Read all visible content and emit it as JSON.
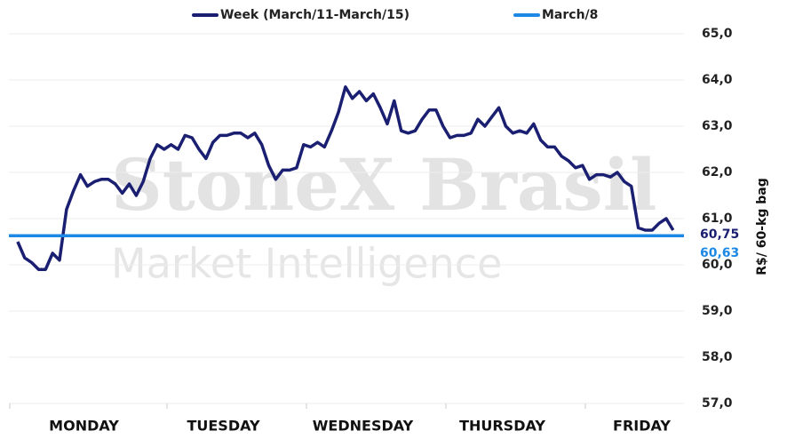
{
  "chart_data": {
    "type": "line",
    "watermark": [
      "StoneX Brasil",
      "Market Intelligence"
    ],
    "y_axis_label": "R$/ 60-kg bag",
    "categories": [
      "MONDAY",
      "TUESDAY",
      "WEDNESDAY",
      "THURSDAY",
      "FRIDAY"
    ],
    "series": [
      {
        "name": "Week (March/11-March/15)",
        "color": "#1a1f71",
        "value_label": "60,75",
        "values": [
          [
            60.5,
            60.15,
            60.05,
            59.9,
            59.9,
            60.25,
            60.1,
            61.2,
            61.6,
            61.95,
            61.7,
            61.8,
            61.85,
            61.85,
            61.75,
            61.55,
            61.75,
            61.5,
            61.8,
            62.3
          ],
          [
            62.6,
            62.5,
            62.6,
            62.5,
            62.8,
            62.75,
            62.5,
            62.3,
            62.65,
            62.8,
            62.8,
            62.85,
            62.85,
            62.75,
            62.85,
            62.6,
            62.15,
            61.85,
            62.05,
            62.05
          ],
          [
            62.1,
            62.6,
            62.55,
            62.65,
            62.55,
            62.9,
            63.3,
            63.85,
            63.6,
            63.75,
            63.55,
            63.7,
            63.4,
            63.05,
            63.55,
            62.9,
            62.85,
            62.9,
            63.15,
            63.35
          ],
          [
            63.35,
            63.0,
            62.75,
            62.8,
            62.8,
            62.85,
            63.15,
            63.0,
            63.2,
            63.4,
            63.0,
            62.85,
            62.9,
            62.85,
            63.05,
            62.7,
            62.55,
            62.55,
            62.35,
            62.25
          ],
          [
            62.1,
            62.15,
            61.85,
            61.95,
            61.95,
            61.9,
            62.0,
            61.8,
            61.7,
            60.8,
            60.75,
            60.75,
            60.9,
            61.0,
            60.75
          ]
        ]
      },
      {
        "name": "March/8",
        "color": "#1e88e5",
        "value": 60.63,
        "value_label": "60,63"
      }
    ],
    "ylim": [
      57,
      65
    ],
    "yticks": [
      {
        "value": 57,
        "label": "57,0"
      },
      {
        "value": 58,
        "label": "58,0"
      },
      {
        "value": 59,
        "label": "59,0"
      },
      {
        "value": 60,
        "label": "60,0"
      },
      {
        "value": 61,
        "label": "61,0"
      },
      {
        "value": 62,
        "label": "62,0"
      },
      {
        "value": 63,
        "label": "63,0"
      },
      {
        "value": 64,
        "label": "64,0"
      },
      {
        "value": 65,
        "label": "65,0"
      }
    ],
    "grid": true
  }
}
